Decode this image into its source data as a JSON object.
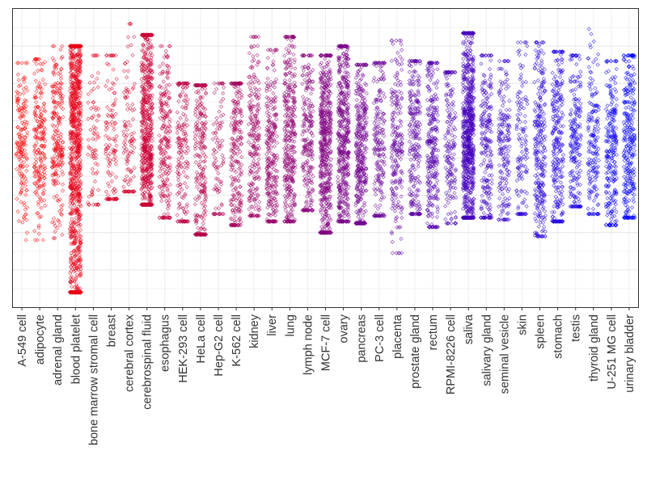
{
  "chart_data": {
    "type": "scatter",
    "style": "jittered strip plot",
    "title": "",
    "xlabel": "",
    "ylabel": "",
    "ylim": [
      0,
      16
    ],
    "y_tick_labels_shown": false,
    "grid": true,
    "legend": "none",
    "point_shape": "open diamond",
    "color_gradient": [
      "#ff0000",
      "#800080",
      "#0000ff"
    ],
    "categories": [
      "A-549 cell",
      "adipocyte",
      "adrenal gland",
      "blood platelet",
      "bone marrow stromal cell",
      "breast",
      "cerebral cortex",
      "cerebrospinal fluid",
      "esophagus",
      "HEK-293 cell",
      "HeLa cell",
      "Hep-G2 cell",
      "K-562 cell",
      "kidney",
      "liver",
      "lung",
      "lymph node",
      "MCF-7 cell",
      "ovary",
      "pancreas",
      "PC-3 cell",
      "placenta",
      "prostate gland",
      "rectum",
      "RPMI-8226 cell",
      "saliva",
      "salivary gland",
      "seminal vesicle",
      "skin",
      "spleen",
      "stomach",
      "testis",
      "thyroid gland",
      "U-251 MG cell",
      "urinary bladder"
    ],
    "series": [
      {
        "category": "A-549 cell",
        "n": 160,
        "center": 9.0,
        "q_low": 7.3,
        "q_high": 10.5,
        "min": 3.6,
        "max": 13.1
      },
      {
        "category": "adipocyte",
        "n": 200,
        "center": 9.1,
        "q_low": 7.5,
        "q_high": 10.7,
        "min": 3.6,
        "max": 13.3
      },
      {
        "category": "adrenal gland",
        "n": 210,
        "center": 8.9,
        "q_low": 7.3,
        "q_high": 10.6,
        "min": 3.7,
        "max": 14.0
      },
      {
        "category": "blood platelet",
        "n": 1000,
        "center": 8.2,
        "q_low": 3.5,
        "q_high": 11.5,
        "min": 0.8,
        "max": 14.0
      },
      {
        "category": "bone marrow stromal cell",
        "n": 80,
        "center": 9.0,
        "q_low": 7.2,
        "q_high": 10.8,
        "min": 5.5,
        "max": 13.5
      },
      {
        "category": "breast",
        "n": 120,
        "center": 9.3,
        "q_low": 7.5,
        "q_high": 11.3,
        "min": 5.8,
        "max": 13.5
      },
      {
        "category": "cerebral cortex",
        "n": 110,
        "center": 9.0,
        "q_low": 7.4,
        "q_high": 10.8,
        "min": 6.2,
        "max": 15.2
      },
      {
        "category": "cerebrospinal fluid",
        "n": 620,
        "center": 9.0,
        "q_low": 7.2,
        "q_high": 11.5,
        "min": 5.5,
        "max": 14.6
      },
      {
        "category": "esophagus",
        "n": 220,
        "center": 8.8,
        "q_low": 6.8,
        "q_high": 10.8,
        "min": 4.8,
        "max": 14.0
      },
      {
        "category": "HEK-293 cell",
        "n": 170,
        "center": 8.4,
        "q_low": 6.3,
        "q_high": 10.2,
        "min": 4.6,
        "max": 12.0
      },
      {
        "category": "HeLa cell",
        "n": 260,
        "center": 8.2,
        "q_low": 5.5,
        "q_high": 10.4,
        "min": 3.9,
        "max": 11.9
      },
      {
        "category": "Hep-G2 cell",
        "n": 90,
        "center": 8.6,
        "q_low": 6.8,
        "q_high": 10.5,
        "min": 5.0,
        "max": 12.0
      },
      {
        "category": "K-562 cell",
        "n": 240,
        "center": 8.6,
        "q_low": 6.7,
        "q_high": 10.5,
        "min": 4.4,
        "max": 12.0
      },
      {
        "category": "kidney",
        "n": 220,
        "center": 8.8,
        "q_low": 7.0,
        "q_high": 10.8,
        "min": 4.9,
        "max": 14.5
      },
      {
        "category": "liver",
        "n": 260,
        "center": 8.5,
        "q_low": 6.5,
        "q_high": 10.4,
        "min": 4.6,
        "max": 13.8
      },
      {
        "category": "lung",
        "n": 360,
        "center": 8.9,
        "q_low": 6.9,
        "q_high": 11.0,
        "min": 4.6,
        "max": 14.5
      },
      {
        "category": "lymph node",
        "n": 230,
        "center": 8.7,
        "q_low": 6.8,
        "q_high": 10.6,
        "min": 5.2,
        "max": 13.5
      },
      {
        "category": "MCF-7 cell",
        "n": 560,
        "center": 8.5,
        "q_low": 6.0,
        "q_high": 10.5,
        "min": 4.0,
        "max": 13.5
      },
      {
        "category": "ovary",
        "n": 480,
        "center": 8.7,
        "q_low": 6.7,
        "q_high": 10.9,
        "min": 4.6,
        "max": 14.0
      },
      {
        "category": "pancreas",
        "n": 380,
        "center": 8.4,
        "q_low": 6.4,
        "q_high": 10.5,
        "min": 4.5,
        "max": 13.0
      },
      {
        "category": "PC-3 cell",
        "n": 200,
        "center": 8.7,
        "q_low": 6.8,
        "q_high": 10.8,
        "min": 4.9,
        "max": 13.1
      },
      {
        "category": "placenta",
        "n": 210,
        "center": 8.5,
        "q_low": 6.6,
        "q_high": 10.5,
        "min": 2.9,
        "max": 14.3
      },
      {
        "category": "prostate gland",
        "n": 240,
        "center": 8.8,
        "q_low": 6.8,
        "q_high": 10.8,
        "min": 5.0,
        "max": 13.2
      },
      {
        "category": "rectum",
        "n": 280,
        "center": 8.6,
        "q_low": 6.5,
        "q_high": 10.6,
        "min": 4.3,
        "max": 13.1
      },
      {
        "category": "RPMI-8226 cell",
        "n": 170,
        "center": 8.6,
        "q_low": 6.7,
        "q_high": 10.8,
        "min": 4.5,
        "max": 12.6
      },
      {
        "category": "saliva",
        "n": 760,
        "center": 8.9,
        "q_low": 6.7,
        "q_high": 11.3,
        "min": 4.8,
        "max": 14.7
      },
      {
        "category": "salivary gland",
        "n": 220,
        "center": 8.7,
        "q_low": 6.8,
        "q_high": 10.7,
        "min": 4.8,
        "max": 13.5
      },
      {
        "category": "seminal vesicle",
        "n": 180,
        "center": 8.6,
        "q_low": 6.8,
        "q_high": 10.4,
        "min": 4.7,
        "max": 13.2
      },
      {
        "category": "skin",
        "n": 130,
        "center": 8.7,
        "q_low": 6.8,
        "q_high": 10.6,
        "min": 5.0,
        "max": 14.2
      },
      {
        "category": "spleen",
        "n": 270,
        "center": 8.5,
        "q_low": 6.5,
        "q_high": 10.5,
        "min": 3.8,
        "max": 14.2
      },
      {
        "category": "stomach",
        "n": 260,
        "center": 8.6,
        "q_low": 6.7,
        "q_high": 10.6,
        "min": 4.6,
        "max": 13.7
      },
      {
        "category": "testis",
        "n": 200,
        "center": 8.7,
        "q_low": 6.8,
        "q_high": 10.5,
        "min": 5.4,
        "max": 13.5
      },
      {
        "category": "thyroid gland",
        "n": 170,
        "center": 8.6,
        "q_low": 6.8,
        "q_high": 10.3,
        "min": 5.0,
        "max": 15.0
      },
      {
        "category": "U-251 MG cell",
        "n": 240,
        "center": 8.7,
        "q_low": 6.8,
        "q_high": 10.6,
        "min": 4.4,
        "max": 13.2
      },
      {
        "category": "urinary bladder",
        "n": 280,
        "center": 8.6,
        "q_low": 6.7,
        "q_high": 10.6,
        "min": 4.8,
        "max": 13.5
      }
    ]
  }
}
